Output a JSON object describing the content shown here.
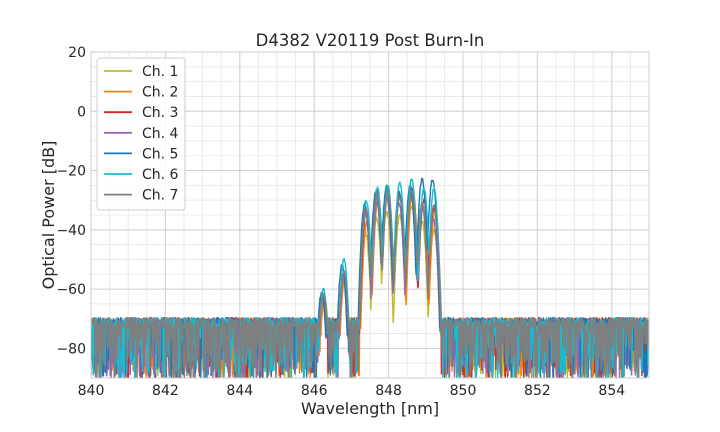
{
  "chart_data": {
    "type": "line",
    "title": "D4382 V20119 Post Burn-In",
    "xlabel": "Wavelength [nm]",
    "ylabel": "Optical Power [dB]",
    "xlim": [
      840,
      855
    ],
    "ylim": [
      -90,
      20
    ],
    "x_ticks": [
      840,
      842,
      844,
      846,
      848,
      850,
      852,
      854
    ],
    "y_ticks": [
      20,
      0,
      -20,
      -40,
      -60,
      -80
    ],
    "x_tick_labels": [
      "840",
      "842",
      "844",
      "846",
      "848",
      "850",
      "852",
      "854"
    ],
    "y_tick_labels": [
      "20",
      "0",
      "−20",
      "−40",
      "−60",
      "−80"
    ],
    "grid": true,
    "grid_minor": true,
    "legend_position": "upper-left",
    "noise_floor_db": -71,
    "series": [
      {
        "name": "Ch. 1",
        "color": "#bcbd22",
        "peaks": [
          [
            846.25,
            -64
          ],
          [
            846.8,
            -58
          ],
          [
            847.38,
            -41
          ],
          [
            847.68,
            -36
          ],
          [
            847.95,
            -34
          ],
          [
            848.3,
            -35
          ],
          [
            848.62,
            -32
          ],
          [
            848.9,
            -37
          ],
          [
            849.22,
            -40
          ]
        ]
      },
      {
        "name": "Ch. 2",
        "color": "#ff7f0e",
        "peaks": [
          [
            846.28,
            -63
          ],
          [
            846.82,
            -57
          ],
          [
            847.42,
            -37
          ],
          [
            847.72,
            -30
          ],
          [
            847.98,
            -28
          ],
          [
            848.3,
            -29
          ],
          [
            848.65,
            -27
          ],
          [
            848.92,
            -32
          ],
          [
            849.25,
            -34
          ]
        ]
      },
      {
        "name": "Ch. 3",
        "color": "#d62728",
        "peaks": [
          [
            846.22,
            -62
          ],
          [
            846.78,
            -55
          ],
          [
            847.4,
            -34
          ],
          [
            847.7,
            -27
          ],
          [
            847.98,
            -26
          ],
          [
            848.3,
            -28
          ],
          [
            848.62,
            -26
          ],
          [
            848.95,
            -30
          ],
          [
            849.22,
            -33
          ]
        ]
      },
      {
        "name": "Ch. 4",
        "color": "#9467bd",
        "peaks": [
          [
            846.22,
            -63
          ],
          [
            846.8,
            -56
          ],
          [
            847.38,
            -35
          ],
          [
            847.7,
            -30
          ],
          [
            847.95,
            -29
          ],
          [
            848.28,
            -31
          ],
          [
            848.6,
            -28
          ],
          [
            848.9,
            -32
          ],
          [
            849.2,
            -36
          ]
        ]
      },
      {
        "name": "Ch. 5",
        "color": "#1f77b4",
        "peaks": [
          [
            846.2,
            -61
          ],
          [
            846.75,
            -52
          ],
          [
            847.36,
            -31
          ],
          [
            847.66,
            -27
          ],
          [
            847.95,
            -25
          ],
          [
            848.28,
            -27
          ],
          [
            848.58,
            -25
          ],
          [
            848.9,
            -23
          ],
          [
            849.18,
            -23
          ]
        ]
      },
      {
        "name": "Ch. 6",
        "color": "#17becf",
        "peaks": [
          [
            846.25,
            -60
          ],
          [
            846.8,
            -50
          ],
          [
            847.4,
            -30
          ],
          [
            847.7,
            -26
          ],
          [
            847.98,
            -25
          ],
          [
            848.3,
            -24
          ],
          [
            848.62,
            -23
          ],
          [
            848.95,
            -26
          ],
          [
            849.22,
            -26
          ]
        ]
      },
      {
        "name": "Ch. 7",
        "color": "#7f7f7f",
        "peaks": [
          [
            846.25,
            -62
          ],
          [
            846.8,
            -54
          ],
          [
            847.38,
            -33
          ],
          [
            847.68,
            -28
          ],
          [
            847.98,
            -27
          ],
          [
            848.3,
            -29
          ],
          [
            848.62,
            -27
          ],
          [
            848.9,
            -31
          ],
          [
            849.22,
            -32
          ]
        ]
      }
    ]
  }
}
